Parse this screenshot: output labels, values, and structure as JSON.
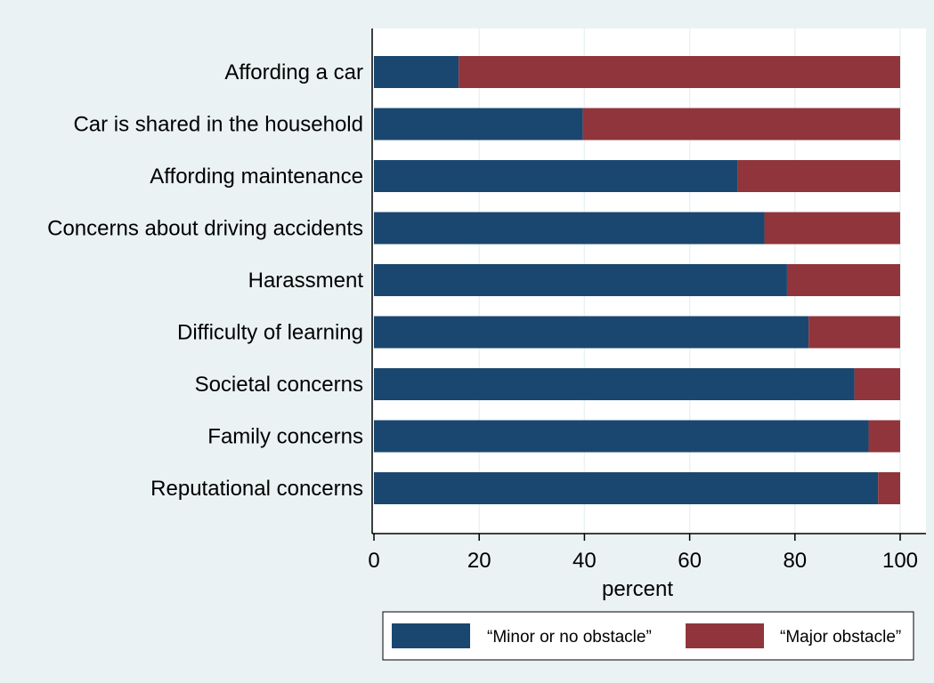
{
  "chart_data": {
    "type": "bar",
    "orientation": "horizontal",
    "stacked": true,
    "categories": [
      "Affording a car",
      "Car is shared in the household",
      "Affording maintenance",
      "Concerns about driving accidents",
      "Harassment",
      "Difficulty of learning",
      "Societal concerns",
      "Family concerns",
      "Reputational concerns"
    ],
    "series": [
      {
        "name": "“Minor or no obstacle”",
        "color": "#1a476f",
        "values": [
          16.1,
          39.7,
          69.1,
          74.2,
          78.5,
          82.6,
          91.3,
          94.0,
          95.8
        ]
      },
      {
        "name": "“Major obstacle”",
        "color": "#90353b",
        "values": [
          83.9,
          60.3,
          30.9,
          25.8,
          21.5,
          17.4,
          8.7,
          6.0,
          4.2
        ]
      }
    ],
    "xlabel": "percent",
    "xlim": [
      0,
      100
    ],
    "xticks": [
      0,
      20,
      40,
      60,
      80,
      100
    ],
    "grid": true,
    "legend_position": "bottom",
    "background_color": "#eaf2f3",
    "plot_background_color": "#ffffff",
    "grid_color": "#eaf2f3"
  }
}
